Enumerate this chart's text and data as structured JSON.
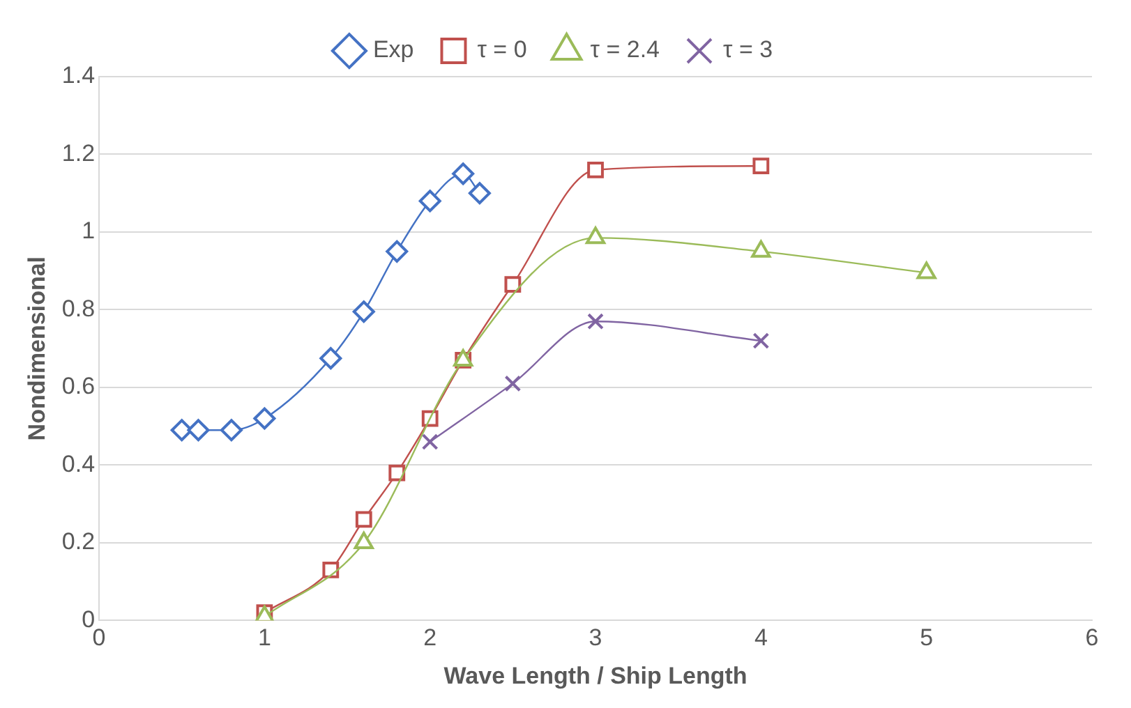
{
  "chart_data": {
    "type": "line",
    "xlabel": "Wave Length / Ship Length",
    "ylabel": "Nondimensional",
    "xlim": [
      0,
      6
    ],
    "xticks": [
      0,
      1,
      2,
      3,
      4,
      5,
      6
    ],
    "ylim": [
      0,
      1.4
    ],
    "yticks": [
      0,
      0.2,
      0.4,
      0.6,
      0.8,
      1,
      1.2,
      1.4
    ],
    "grid": "y",
    "legend": "top",
    "series": [
      {
        "name": "Exp",
        "color": "#4472c4",
        "marker": "diamond",
        "x": [
          0.5,
          0.6,
          0.8,
          1.0,
          1.4,
          1.6,
          1.8,
          2.0,
          2.2,
          2.3
        ],
        "values": [
          0.49,
          0.49,
          0.49,
          0.52,
          0.675,
          0.795,
          0.95,
          1.08,
          1.15,
          1.1
        ]
      },
      {
        "name": "τ = 0",
        "color": "#c0504d",
        "marker": "square",
        "x": [
          1,
          1.4,
          1.6,
          1.8,
          2.0,
          2.2,
          2.5,
          3,
          4
        ],
        "values": [
          0.02,
          0.13,
          0.26,
          0.38,
          0.52,
          0.67,
          0.865,
          1.16,
          1.17
        ]
      },
      {
        "name": "τ = 2.4",
        "color": "#9bbb59",
        "marker": "triangle",
        "x": [
          1,
          1.6,
          2.2,
          3,
          4,
          5
        ],
        "values": [
          0.01,
          0.2,
          0.67,
          0.985,
          0.95,
          0.895
        ]
      },
      {
        "name": "τ = 3",
        "color": "#8064a2",
        "marker": "cross",
        "x": [
          2,
          2.5,
          3,
          4
        ],
        "values": [
          0.46,
          0.61,
          0.77,
          0.72
        ]
      }
    ]
  }
}
